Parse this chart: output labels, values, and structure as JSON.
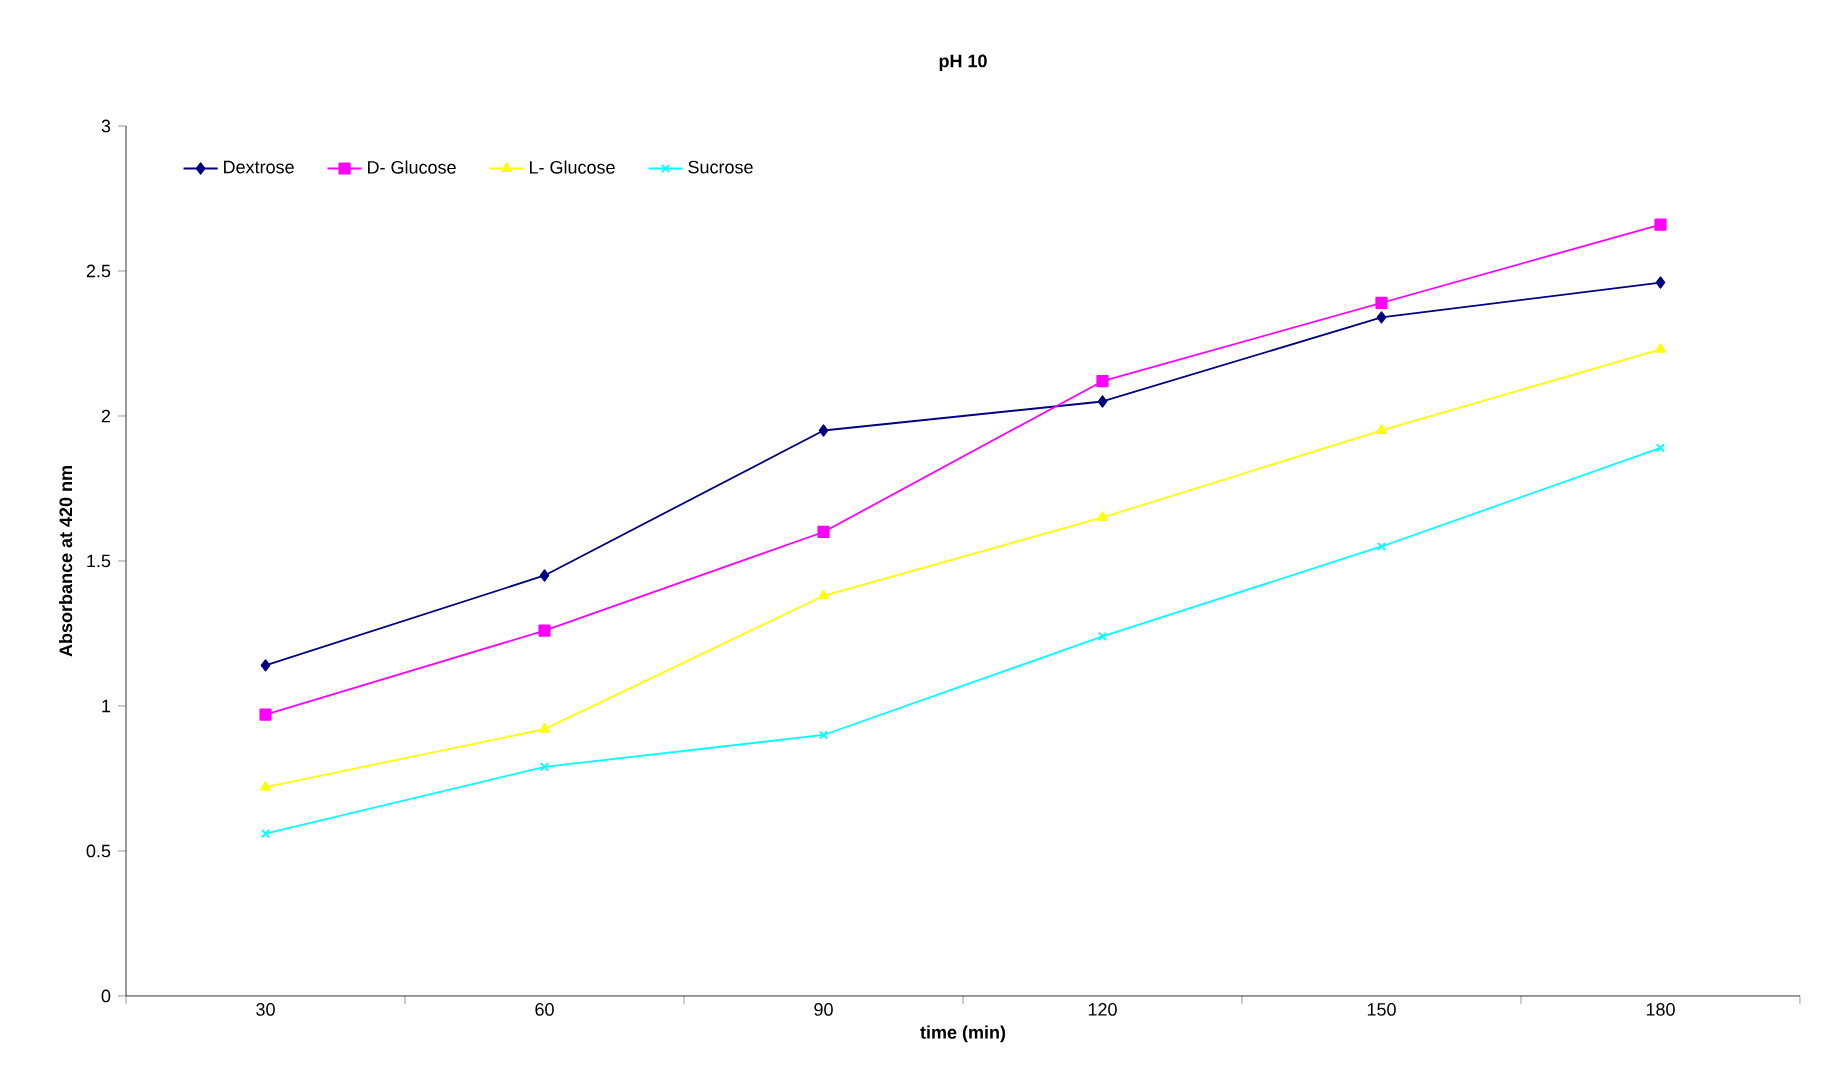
{
  "chart_data": {
    "type": "line",
    "title": "pH 10",
    "xlabel": "time (min)",
    "ylabel": "Absorbance at 420 nm",
    "categories": [
      "30",
      "60",
      "90",
      "120",
      "150",
      "180"
    ],
    "ylim": [
      0,
      3
    ],
    "yticks": [
      0,
      0.5,
      1,
      1.5,
      2,
      2.5,
      3
    ],
    "grid": false,
    "legend": "top left",
    "series": [
      {
        "name": "Dextrose",
        "color": "#000080",
        "marker": "diamond",
        "values": [
          1.14,
          1.45,
          1.95,
          2.05,
          2.34,
          2.46
        ]
      },
      {
        "name": "D- Glucose",
        "color": "#ff00ff",
        "marker": "square",
        "values": [
          0.97,
          1.26,
          1.6,
          2.12,
          2.39,
          2.66
        ]
      },
      {
        "name": "L- Glucose",
        "color": "#ffff00",
        "marker": "triangle",
        "values": [
          0.72,
          0.92,
          1.38,
          1.65,
          1.95,
          2.23
        ]
      },
      {
        "name": "Sucrose",
        "color": "#00ffff",
        "marker": "cross",
        "values": [
          0.56,
          0.79,
          0.9,
          1.24,
          1.55,
          1.89
        ]
      }
    ]
  }
}
